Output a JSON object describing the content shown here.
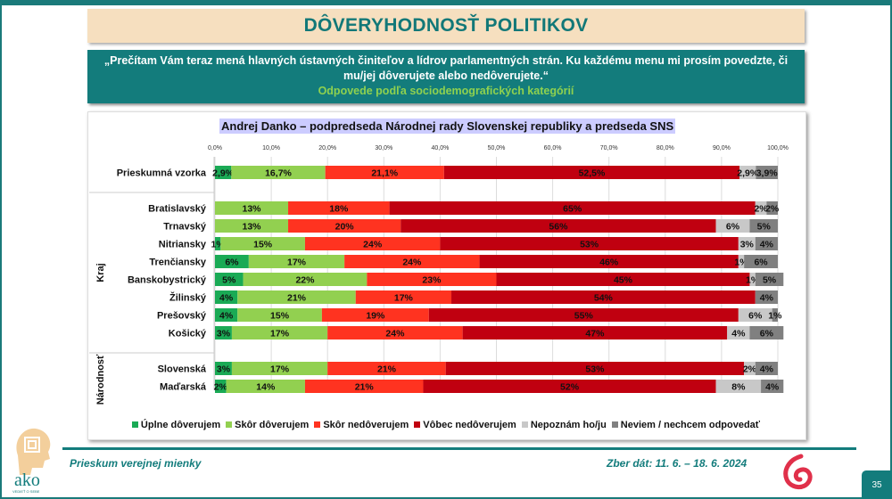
{
  "header": {
    "title": "DÔVERYHODNOSŤ POLITIKOV"
  },
  "question": {
    "text": "„Prečítam Vám teraz mená hlavných ústavných činiteľov a lídrov parlamentných strán. Ku každému menu mi prosím povedzte, či mu/jej dôverujete alebo nedôverujete.“",
    "subtitle": "Odpovede podľa sociodemografických kategórií"
  },
  "chart_data": {
    "type": "bar",
    "orientation": "horizontal-stacked-100",
    "title": "Andrej Danko – podpredseda Národnej rady Slovenskej republiky a predseda SNS",
    "xlim": [
      0,
      100
    ],
    "x_ticks": [
      "0,0%",
      "10,0%",
      "20,0%",
      "30,0%",
      "40,0%",
      "50,0%",
      "60,0%",
      "70,0%",
      "80,0%",
      "90,0%",
      "100,0%"
    ],
    "grid": true,
    "legend_position": "bottom",
    "groups": [
      {
        "label": "",
        "rows": [
          0
        ]
      },
      {
        "label": "Kraj",
        "rows": [
          1,
          2,
          3,
          4,
          5,
          6,
          7,
          8
        ]
      },
      {
        "label": "Národnosť",
        "rows": [
          9,
          10
        ]
      }
    ],
    "categories": [
      "Prieskumná vzorka",
      "Bratislavský",
      "Trnavský",
      "Nitriansky",
      "Trenčiansky",
      "Banskobystrický",
      "Žilinský",
      "Prešovský",
      "Košický",
      "Slovenská",
      "Maďarská"
    ],
    "series": [
      {
        "name": "Úplne dôverujem",
        "color": "#1aaa55",
        "values": [
          2.9,
          0,
          0,
          1,
          6,
          5,
          4,
          4,
          3,
          3,
          2
        ],
        "labels": [
          "2,9%",
          "",
          "",
          "1%",
          "6%",
          "5%",
          "4%",
          "4%",
          "3%",
          "3%",
          "2%"
        ]
      },
      {
        "name": "Skôr dôverujem",
        "color": "#92d050",
        "values": [
          16.7,
          13,
          13,
          15,
          17,
          22,
          21,
          15,
          17,
          17,
          14
        ],
        "labels": [
          "16,7%",
          "13%",
          "13%",
          "15%",
          "17%",
          "22%",
          "21%",
          "15%",
          "17%",
          "17%",
          "14%"
        ]
      },
      {
        "name": "Skôr nedôverujem",
        "color": "#ff3320",
        "values": [
          21.1,
          18,
          20,
          24,
          24,
          23,
          17,
          19,
          24,
          21,
          21
        ],
        "labels": [
          "21,1%",
          "18%",
          "20%",
          "24%",
          "24%",
          "23%",
          "17%",
          "19%",
          "24%",
          "21%",
          "21%"
        ]
      },
      {
        "name": "Vôbec nedôverujem",
        "color": "#c00010",
        "values": [
          52.5,
          65,
          56,
          53,
          46,
          45,
          54,
          55,
          47,
          53,
          52
        ],
        "labels": [
          "52,5%",
          "65%",
          "56%",
          "53%",
          "46%",
          "45%",
          "54%",
          "55%",
          "47%",
          "53%",
          "52%"
        ]
      },
      {
        "name": "Nepoznám ho/ju",
        "color": "#c8c8c8",
        "values": [
          2.9,
          2,
          6,
          3,
          1,
          1,
          0,
          6,
          4,
          2,
          8
        ],
        "labels": [
          "2,9%",
          "2%",
          "6%",
          "3%",
          "1%",
          "1%",
          "",
          "6%",
          "4%",
          "2%",
          "8%"
        ]
      },
      {
        "name": "Neviem / nechcem odpovedať",
        "color": "#808080",
        "values": [
          3.9,
          2,
          5,
          4,
          6,
          5,
          4,
          1,
          6,
          4,
          4
        ],
        "labels": [
          "3,9%",
          "2%",
          "5%",
          "4%",
          "6%",
          "5%",
          "4%",
          "1%",
          "6%",
          "4%",
          "4%"
        ]
      }
    ]
  },
  "footer": {
    "left": "Prieskum verejnej mienky",
    "right": "Zber dát: 11. 6. – 18. 6. 2024",
    "page": "35",
    "logo_text": "ako",
    "logo_tagline": "VEDIEŤ O SEBE"
  }
}
